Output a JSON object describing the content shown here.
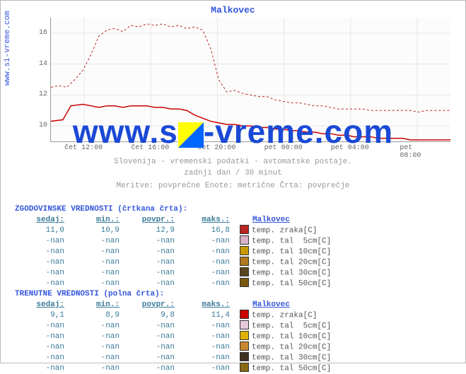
{
  "title": "Malkovec",
  "source_label": "www.si-vreme.com",
  "watermark_text_pre": "www.s",
  "watermark_text_post": "-vreme.com",
  "watermark_icon_colors": {
    "tl": "#ffff00",
    "br": "#0066ff"
  },
  "chart": {
    "type": "line",
    "ylim": [
      9,
      17
    ],
    "ytick_step": 2,
    "yticks": [
      10,
      12,
      14,
      16
    ],
    "xticks": [
      "čet 12:00",
      "čet 16:00",
      "čet 20:00",
      "pet 00:00",
      "pet 04:00",
      "pet 08:00"
    ],
    "background_color": "#fcfcfc",
    "grid_color": "#e6e6e6",
    "series": [
      {
        "name": "hist_temp_zraka",
        "color": "#bb2222",
        "dash": "3,3",
        "width": 1,
        "points": [
          [
            0,
            12.5
          ],
          [
            0.02,
            12.6
          ],
          [
            0.04,
            12.5
          ],
          [
            0.06,
            13.0
          ],
          [
            0.08,
            13.6
          ],
          [
            0.1,
            14.6
          ],
          [
            0.12,
            15.8
          ],
          [
            0.14,
            16.2
          ],
          [
            0.16,
            16.3
          ],
          [
            0.18,
            16.1
          ],
          [
            0.2,
            16.5
          ],
          [
            0.22,
            16.4
          ],
          [
            0.24,
            16.6
          ],
          [
            0.26,
            16.5
          ],
          [
            0.28,
            16.6
          ],
          [
            0.3,
            16.4
          ],
          [
            0.32,
            16.5
          ],
          [
            0.34,
            16.3
          ],
          [
            0.36,
            16.4
          ],
          [
            0.38,
            16.2
          ],
          [
            0.4,
            15.0
          ],
          [
            0.42,
            13.0
          ],
          [
            0.44,
            12.2
          ],
          [
            0.46,
            12.3
          ],
          [
            0.48,
            12.1
          ],
          [
            0.5,
            12.0
          ],
          [
            0.52,
            11.9
          ],
          [
            0.54,
            11.9
          ],
          [
            0.56,
            11.7
          ],
          [
            0.58,
            11.6
          ],
          [
            0.6,
            11.5
          ],
          [
            0.62,
            11.5
          ],
          [
            0.64,
            11.4
          ],
          [
            0.66,
            11.3
          ],
          [
            0.68,
            11.3
          ],
          [
            0.7,
            11.2
          ],
          [
            0.72,
            11.1
          ],
          [
            0.74,
            11.1
          ],
          [
            0.76,
            11.1
          ],
          [
            0.78,
            11.1
          ],
          [
            0.8,
            11.0
          ],
          [
            0.82,
            11.0
          ],
          [
            0.84,
            11.0
          ],
          [
            0.86,
            11.0
          ],
          [
            0.88,
            11.0
          ],
          [
            0.9,
            11.0
          ],
          [
            0.92,
            10.9
          ],
          [
            0.94,
            11.0
          ],
          [
            0.96,
            11.0
          ],
          [
            0.98,
            11.0
          ],
          [
            1.0,
            11.0
          ]
        ]
      },
      {
        "name": "cur_temp_zraka",
        "color": "#cc0000",
        "dash": "",
        "width": 1.5,
        "points": [
          [
            0,
            10.3
          ],
          [
            0.03,
            10.4
          ],
          [
            0.05,
            11.3
          ],
          [
            0.08,
            11.4
          ],
          [
            0.1,
            11.3
          ],
          [
            0.12,
            11.2
          ],
          [
            0.14,
            11.3
          ],
          [
            0.16,
            11.3
          ],
          [
            0.18,
            11.2
          ],
          [
            0.2,
            11.3
          ],
          [
            0.22,
            11.3
          ],
          [
            0.24,
            11.3
          ],
          [
            0.26,
            11.2
          ],
          [
            0.28,
            11.2
          ],
          [
            0.3,
            11.1
          ],
          [
            0.32,
            11.1
          ],
          [
            0.34,
            11.0
          ],
          [
            0.36,
            10.7
          ],
          [
            0.38,
            10.5
          ],
          [
            0.4,
            10.3
          ],
          [
            0.42,
            10.2
          ],
          [
            0.44,
            10.1
          ],
          [
            0.46,
            10.1
          ],
          [
            0.48,
            10.0
          ],
          [
            0.5,
            10.0
          ],
          [
            0.52,
            9.9
          ],
          [
            0.54,
            9.9
          ],
          [
            0.56,
            9.8
          ],
          [
            0.58,
            9.8
          ],
          [
            0.6,
            9.7
          ],
          [
            0.62,
            9.7
          ],
          [
            0.64,
            9.6
          ],
          [
            0.66,
            9.6
          ],
          [
            0.68,
            9.5
          ],
          [
            0.7,
            9.5
          ],
          [
            0.72,
            9.4
          ],
          [
            0.74,
            9.4
          ],
          [
            0.76,
            9.3
          ],
          [
            0.78,
            9.3
          ],
          [
            0.8,
            9.3
          ],
          [
            0.82,
            9.2
          ],
          [
            0.84,
            9.2
          ],
          [
            0.86,
            9.2
          ],
          [
            0.88,
            9.2
          ],
          [
            0.9,
            9.1
          ],
          [
            0.92,
            9.1
          ],
          [
            0.94,
            9.1
          ],
          [
            0.96,
            9.1
          ],
          [
            0.98,
            9.1
          ],
          [
            1.0,
            9.1
          ]
        ]
      }
    ]
  },
  "midtext": {
    "line1": "Slovenija - vremenski podatki - avtomatske postaje.",
    "line2": "zadnji dan / 30 minut",
    "line3": "Meritve: povprečne  Enote: metrične  Črta: povprečje"
  },
  "tables": {
    "group_title": "Malkovec",
    "historic": {
      "header": "ZGODOVINSKE VREDNOSTI (črtkana črta):",
      "cols": [
        "sedaj:",
        "min.:",
        "povpr.:",
        "maks.:"
      ],
      "rows": [
        {
          "vals": [
            "11,0",
            "10,9",
            "12,9",
            "16,8"
          ],
          "swatch": "#bb2222",
          "label": "temp. zraka[C]"
        },
        {
          "vals": [
            "-nan",
            "-nan",
            "-nan",
            "-nan"
          ],
          "swatch": "#d8b0c8",
          "label": "temp. tal  5cm[C]"
        },
        {
          "vals": [
            "-nan",
            "-nan",
            "-nan",
            "-nan"
          ],
          "swatch": "#c99a00",
          "label": "temp. tal 10cm[C]"
        },
        {
          "vals": [
            "-nan",
            "-nan",
            "-nan",
            "-nan"
          ],
          "swatch": "#b07820",
          "label": "temp. tal 20cm[C]"
        },
        {
          "vals": [
            "-nan",
            "-nan",
            "-nan",
            "-nan"
          ],
          "swatch": "#5a4420",
          "label": "temp. tal 30cm[C]"
        },
        {
          "vals": [
            "-nan",
            "-nan",
            "-nan",
            "-nan"
          ],
          "swatch": "#7a5a10",
          "label": "temp. tal 50cm[C]"
        }
      ]
    },
    "current": {
      "header": "TRENUTNE VREDNOSTI (polna črta):",
      "cols": [
        "sedaj:",
        "min.:",
        "povpr.:",
        "maks.:"
      ],
      "rows": [
        {
          "vals": [
            "9,1",
            "8,9",
            "9,8",
            "11,4"
          ],
          "swatch": "#cc0000",
          "label": "temp. zraka[C]"
        },
        {
          "vals": [
            "-nan",
            "-nan",
            "-nan",
            "-nan"
          ],
          "swatch": "#e8c8dc",
          "label": "temp. tal  5cm[C]"
        },
        {
          "vals": [
            "-nan",
            "-nan",
            "-nan",
            "-nan"
          ],
          "swatch": "#e0b000",
          "label": "temp. tal 10cm[C]"
        },
        {
          "vals": [
            "-nan",
            "-nan",
            "-nan",
            "-nan"
          ],
          "swatch": "#c88830",
          "label": "temp. tal 20cm[C]"
        },
        {
          "vals": [
            "-nan",
            "-nan",
            "-nan",
            "-nan"
          ],
          "swatch": "#403020",
          "label": "temp. tal 30cm[C]"
        },
        {
          "vals": [
            "-nan",
            "-nan",
            "-nan",
            "-nan"
          ],
          "swatch": "#8a6a10",
          "label": "temp. tal 50cm[C]"
        }
      ]
    }
  }
}
